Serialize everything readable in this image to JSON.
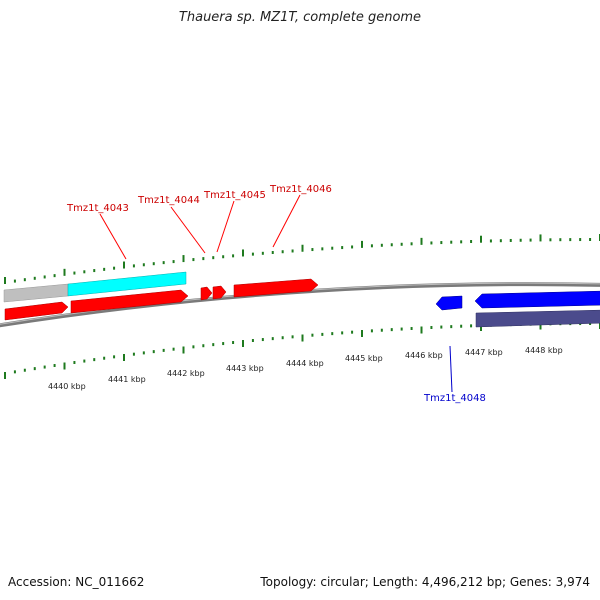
{
  "title": "Thauera sp. MZ1T, complete genome",
  "footer": {
    "accession": "Accession: NC_011662",
    "summary": "Topology: circular; Length: 4,496,212 bp; Genes: 3,974"
  },
  "scale_labels": [
    "4440 kbp",
    "4441 kbp",
    "4442 kbp",
    "4443 kbp",
    "4444 kbp",
    "4445 kbp",
    "4446 kbp",
    "4447 kbp",
    "4448 kbp"
  ],
  "gene_labels": {
    "g4043": "Tmz1t_4043",
    "g4044": "Tmz1t_4044",
    "g4045": "Tmz1t_4045",
    "g4046": "Tmz1t_4046",
    "g4048": "Tmz1t_4048"
  },
  "colors": {
    "forward_cds": "#ff0000",
    "reverse_cds": "#0000ff",
    "rna_track": "#00ffff",
    "gray_track": "#bfbfbf",
    "reverse_rna_track": "#4b4b8c",
    "backbone": "#7a7a7a",
    "tick": "#1e7a1e"
  }
}
